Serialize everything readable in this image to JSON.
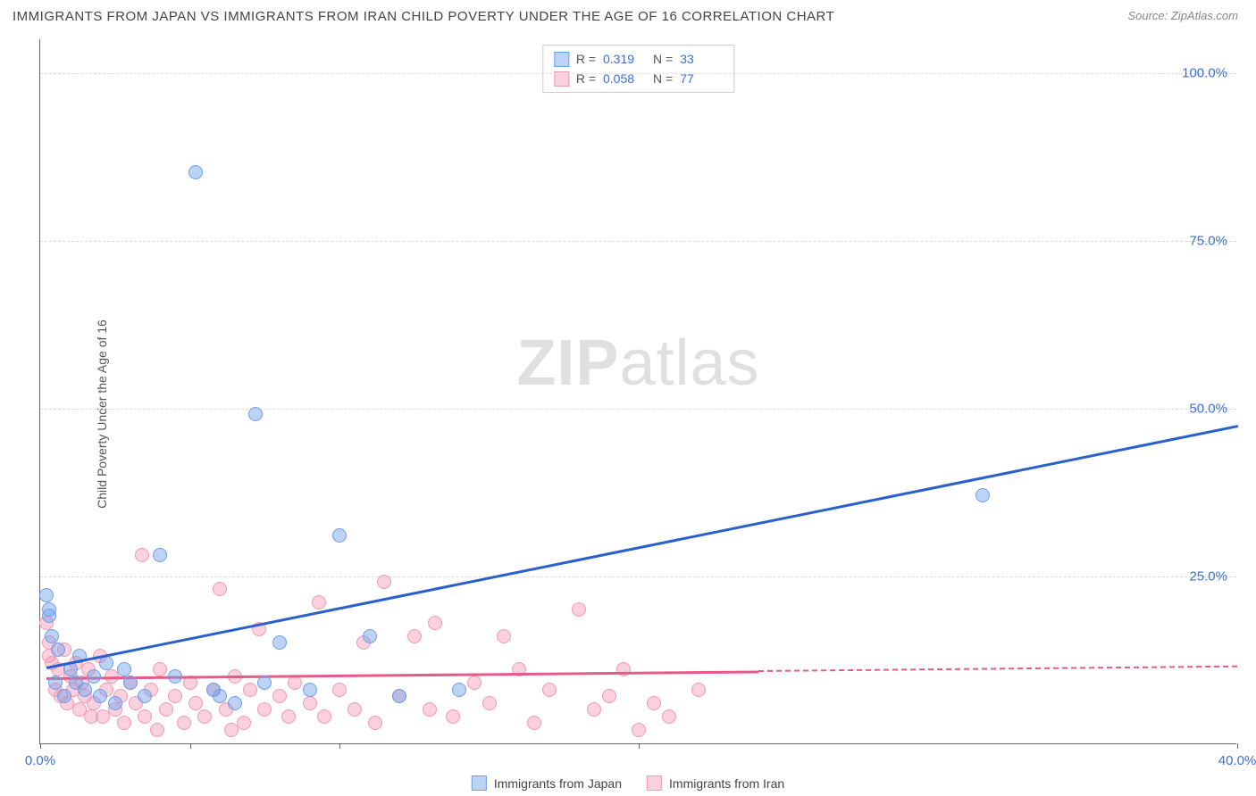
{
  "title": "IMMIGRANTS FROM JAPAN VS IMMIGRANTS FROM IRAN CHILD POVERTY UNDER THE AGE OF 16 CORRELATION CHART",
  "source_prefix": "Source: ",
  "source": "ZipAtlas.com",
  "ylabel": "Child Poverty Under the Age of 16",
  "watermark_a": "ZIP",
  "watermark_b": "atlas",
  "chart": {
    "type": "scatter",
    "xlim": [
      0,
      40
    ],
    "ylim": [
      0,
      105
    ],
    "xtick_positions": [
      0,
      5,
      10,
      20,
      40
    ],
    "xtick_labels": {
      "0": "0.0%",
      "40": "40.0%"
    },
    "ytick_positions": [
      25,
      50,
      75,
      100
    ],
    "ytick_labels": {
      "25": "25.0%",
      "50": "50.0%",
      "75": "75.0%",
      "100": "100.0%"
    },
    "grid_color": "#dddddd",
    "axis_color": "#666666",
    "background_color": "#ffffff",
    "tick_label_color": "#3a6fd8",
    "point_radius": 8,
    "series": [
      {
        "name": "Immigrants from Japan",
        "color_fill": "rgba(109,158,235,0.45)",
        "color_stroke": "#6d9eeb",
        "trend_color": "#2a5fd0",
        "r_value": "0.319",
        "n_value": "33",
        "trend": {
          "x1": 0.2,
          "y1": 11.5,
          "x2": 40,
          "y2": 47.5
        },
        "points": [
          [
            0.2,
            22
          ],
          [
            0.3,
            20
          ],
          [
            0.4,
            16
          ],
          [
            0.5,
            9
          ],
          [
            0.6,
            14
          ],
          [
            0.8,
            7
          ],
          [
            1.0,
            11
          ],
          [
            1.2,
            9
          ],
          [
            1.3,
            13
          ],
          [
            1.5,
            8
          ],
          [
            1.8,
            10
          ],
          [
            2.0,
            7
          ],
          [
            2.2,
            12
          ],
          [
            2.5,
            6
          ],
          [
            2.8,
            11
          ],
          [
            3.0,
            9
          ],
          [
            3.5,
            7
          ],
          [
            4.0,
            28
          ],
          [
            4.5,
            10
          ],
          [
            5.2,
            85
          ],
          [
            5.8,
            8
          ],
          [
            6.0,
            7
          ],
          [
            6.5,
            6
          ],
          [
            7.2,
            49
          ],
          [
            7.5,
            9
          ],
          [
            8.0,
            15
          ],
          [
            9.0,
            8
          ],
          [
            10.0,
            31
          ],
          [
            11.0,
            16
          ],
          [
            12.0,
            7
          ],
          [
            14.0,
            8
          ],
          [
            31.5,
            37
          ],
          [
            0.3,
            19
          ]
        ]
      },
      {
        "name": "Immigrants from Iran",
        "color_fill": "rgba(244,153,178,0.45)",
        "color_stroke": "#f499b2",
        "trend_color": "#e65a8a",
        "r_value": "0.058",
        "n_value": "77",
        "trend": {
          "x1": 0.2,
          "y1": 10.0,
          "x2": 24,
          "y2": 11.0
        },
        "trend_dash": {
          "x1": 24,
          "y1": 11.0,
          "x2": 40,
          "y2": 11.7
        },
        "points": [
          [
            0.2,
            18
          ],
          [
            0.3,
            15
          ],
          [
            0.4,
            12
          ],
          [
            0.5,
            8
          ],
          [
            0.6,
            11
          ],
          [
            0.7,
            7
          ],
          [
            0.8,
            14
          ],
          [
            0.9,
            6
          ],
          [
            1.0,
            10
          ],
          [
            1.1,
            8
          ],
          [
            1.2,
            12
          ],
          [
            1.3,
            5
          ],
          [
            1.4,
            9
          ],
          [
            1.5,
            7
          ],
          [
            1.6,
            11
          ],
          [
            1.8,
            6
          ],
          [
            2.0,
            13
          ],
          [
            2.1,
            4
          ],
          [
            2.2,
            8
          ],
          [
            2.4,
            10
          ],
          [
            2.5,
            5
          ],
          [
            2.7,
            7
          ],
          [
            2.8,
            3
          ],
          [
            3.0,
            9
          ],
          [
            3.2,
            6
          ],
          [
            3.4,
            28
          ],
          [
            3.5,
            4
          ],
          [
            3.7,
            8
          ],
          [
            4.0,
            11
          ],
          [
            4.2,
            5
          ],
          [
            4.5,
            7
          ],
          [
            4.8,
            3
          ],
          [
            5.0,
            9
          ],
          [
            5.2,
            6
          ],
          [
            5.5,
            4
          ],
          [
            5.8,
            8
          ],
          [
            6.0,
            23
          ],
          [
            6.2,
            5
          ],
          [
            6.5,
            10
          ],
          [
            6.8,
            3
          ],
          [
            7.0,
            8
          ],
          [
            7.3,
            17
          ],
          [
            7.5,
            5
          ],
          [
            8.0,
            7
          ],
          [
            8.3,
            4
          ],
          [
            8.5,
            9
          ],
          [
            9.0,
            6
          ],
          [
            9.3,
            21
          ],
          [
            9.5,
            4
          ],
          [
            10.0,
            8
          ],
          [
            10.5,
            5
          ],
          [
            10.8,
            15
          ],
          [
            11.2,
            3
          ],
          [
            11.5,
            24
          ],
          [
            12.0,
            7
          ],
          [
            12.5,
            16
          ],
          [
            13.0,
            5
          ],
          [
            13.2,
            18
          ],
          [
            13.8,
            4
          ],
          [
            14.5,
            9
          ],
          [
            15.0,
            6
          ],
          [
            15.5,
            16
          ],
          [
            16.0,
            11
          ],
          [
            16.5,
            3
          ],
          [
            17.0,
            8
          ],
          [
            18.0,
            20
          ],
          [
            18.5,
            5
          ],
          [
            19.0,
            7
          ],
          [
            19.5,
            11
          ],
          [
            20.0,
            2
          ],
          [
            20.5,
            6
          ],
          [
            21.0,
            4
          ],
          [
            22.0,
            8
          ],
          [
            0.3,
            13
          ],
          [
            1.7,
            4
          ],
          [
            3.9,
            2
          ],
          [
            6.4,
            2
          ]
        ]
      }
    ]
  },
  "legend": {
    "items": [
      "Immigrants from Japan",
      "Immigrants from Iran"
    ]
  }
}
